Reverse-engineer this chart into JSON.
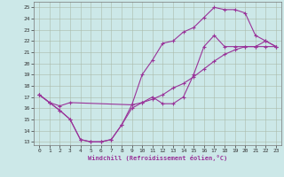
{
  "xlabel": "Windchill (Refroidissement éolien,°C)",
  "bg_color": "#cce8e8",
  "grid_color": "#aaccaa",
  "line_color": "#993399",
  "xlim": [
    -0.5,
    23.5
  ],
  "ylim": [
    12.7,
    25.5
  ],
  "xticks": [
    0,
    1,
    2,
    3,
    4,
    5,
    6,
    7,
    8,
    9,
    10,
    11,
    12,
    13,
    14,
    15,
    16,
    17,
    18,
    19,
    20,
    21,
    22,
    23
  ],
  "yticks": [
    13,
    14,
    15,
    16,
    17,
    18,
    19,
    20,
    21,
    22,
    23,
    24,
    25
  ],
  "line1_x": [
    0,
    1,
    2,
    3,
    4,
    5,
    6,
    7,
    8,
    9,
    10,
    11,
    12,
    13,
    14,
    15,
    16,
    17,
    18,
    19,
    20,
    21,
    22,
    23
  ],
  "line1_y": [
    17.2,
    16.5,
    15.8,
    15.0,
    13.2,
    13.0,
    13.0,
    13.2,
    14.5,
    16.0,
    16.5,
    17.0,
    16.4,
    16.4,
    17.0,
    19.0,
    21.5,
    22.5,
    21.5,
    21.5,
    21.5,
    21.5,
    21.5,
    21.5
  ],
  "line2_x": [
    0,
    1,
    2,
    3,
    4,
    5,
    6,
    7,
    8,
    9,
    10,
    11,
    12,
    13,
    14,
    15,
    16,
    17,
    18,
    19,
    20,
    21,
    22,
    23
  ],
  "line2_y": [
    17.2,
    16.5,
    15.8,
    15.0,
    13.2,
    13.0,
    13.0,
    13.2,
    14.5,
    16.3,
    19.0,
    20.3,
    21.8,
    22.0,
    22.8,
    23.2,
    24.1,
    25.0,
    24.8,
    24.8,
    24.5,
    22.5,
    22.0,
    21.5
  ],
  "line3_x": [
    0,
    1,
    2,
    3,
    9,
    10,
    11,
    12,
    13,
    14,
    15,
    16,
    17,
    18,
    19,
    20,
    21,
    22,
    23
  ],
  "line3_y": [
    17.2,
    16.5,
    16.2,
    16.5,
    16.3,
    16.5,
    16.8,
    17.2,
    17.8,
    18.2,
    18.8,
    19.5,
    20.2,
    20.8,
    21.2,
    21.5,
    21.5,
    22.0,
    21.5
  ]
}
